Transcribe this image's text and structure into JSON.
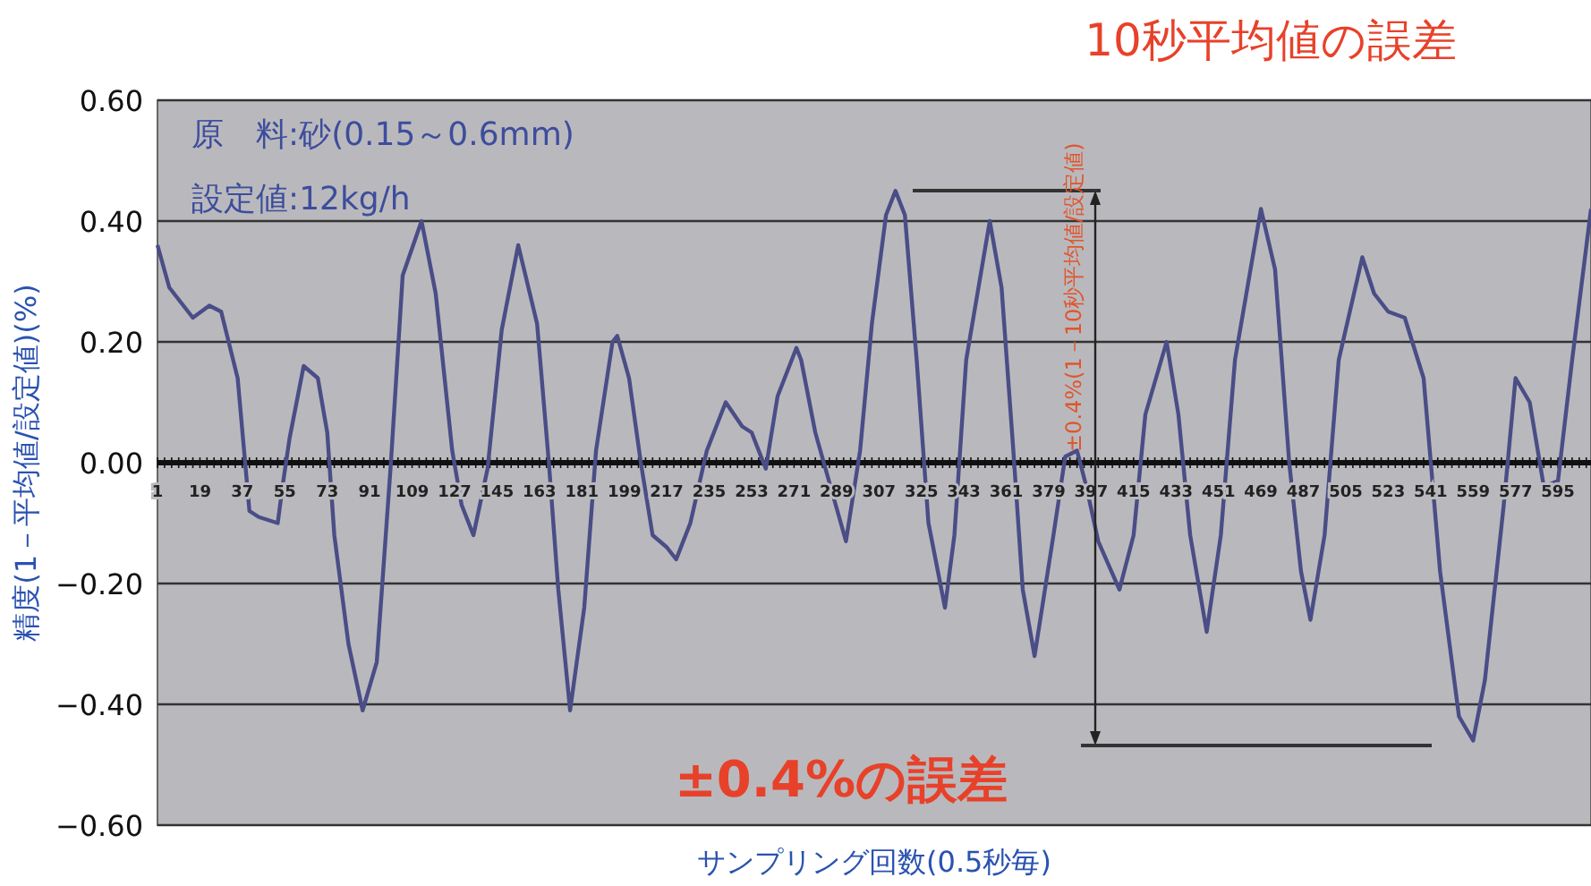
{
  "chart_data": {
    "type": "line",
    "title": "10秒平均値の誤差",
    "xlabel": "サンプリング回数(0.5秒毎)",
    "ylabel": "精度(1－平均値/設定値)(%)",
    "annotations": [
      "原　料:砂(0.15～0.6mm)",
      "設定値:12kg/h",
      "±0.4%の誤差",
      "±0.4%(1－10秒平均値/設定値)"
    ],
    "xlim": [
      1,
      609
    ],
    "xticks": [
      1,
      19,
      37,
      55,
      73,
      91,
      109,
      127,
      145,
      163,
      181,
      199,
      217,
      235,
      253,
      271,
      289,
      307,
      325,
      343,
      361,
      379,
      397,
      415,
      433,
      451,
      469,
      487,
      505,
      523,
      541,
      559,
      577,
      595
    ],
    "ylim": [
      -0.6,
      0.6
    ],
    "yticks": [
      {
        "value": 0.6,
        "label": "0.60"
      },
      {
        "value": 0.4,
        "label": "0.40"
      },
      {
        "value": 0.2,
        "label": "0.20"
      },
      {
        "value": 0,
        "label": "0.00"
      },
      {
        "value": -0.2,
        "label": "−0.20"
      },
      {
        "value": -0.4,
        "label": "−0.40"
      },
      {
        "value": -0.6,
        "label": "−0.60"
      }
    ],
    "grid": "y",
    "marker": "none",
    "line_style": "solid",
    "series": [
      {
        "color": "#4a4d86",
        "x": [
          1,
          6,
          16,
          23,
          28,
          35,
          40,
          44,
          52,
          54,
          57,
          63,
          69,
          73,
          76,
          82,
          88,
          94,
          100,
          105,
          113,
          119,
          126,
          130,
          135,
          141,
          147,
          154,
          162,
          167,
          171,
          176,
          182,
          187,
          194,
          196,
          201,
          206,
          211,
          217,
          221,
          227,
          234,
          242,
          249,
          253,
          259,
          264,
          272,
          274,
          280,
          293,
          299,
          304,
          310,
          314,
          318,
          323,
          328,
          335,
          339,
          344,
          354,
          359,
          364,
          368,
          373,
          381,
          386,
          391,
          395,
          400,
          409,
          415,
          420,
          429,
          434,
          439,
          446,
          452,
          458,
          469,
          475,
          481,
          486,
          490,
          496,
          502,
          512,
          517,
          523,
          530,
          538,
          545,
          553,
          559,
          564,
          572,
          577,
          583,
          589,
          595,
          601,
          609
        ],
        "values": [
          0.36,
          0.29,
          0.24,
          0.26,
          0.25,
          0.14,
          -0.08,
          -0.09,
          -0.1,
          -0.04,
          0.04,
          0.16,
          0.14,
          0.05,
          -0.12,
          -0.3,
          -0.41,
          -0.33,
          0,
          0.31,
          0.4,
          0.28,
          0.02,
          -0.07,
          -0.12,
          -0.01,
          0.22,
          0.36,
          0.23,
          0,
          -0.21,
          -0.41,
          -0.24,
          0.02,
          0.2,
          0.21,
          0.14,
          0,
          -0.12,
          -0.14,
          -0.16,
          -0.1,
          0.02,
          0.1,
          0.06,
          0.05,
          -0.01,
          0.11,
          0.19,
          0.17,
          0.05,
          -0.13,
          0.02,
          0.23,
          0.41,
          0.45,
          0.41,
          0.17,
          -0.1,
          -0.24,
          -0.12,
          0.17,
          0.4,
          0.29,
          0.02,
          -0.21,
          -0.32,
          -0.12,
          0.01,
          0.02,
          -0.04,
          -0.13,
          -0.21,
          -0.12,
          0.08,
          0.2,
          0.08,
          -0.12,
          -0.28,
          -0.12,
          0.17,
          0.42,
          0.32,
          0,
          -0.18,
          -0.26,
          -0.12,
          0.17,
          0.34,
          0.28,
          0.25,
          0.24,
          0.14,
          -0.18,
          -0.42,
          -0.46,
          -0.36,
          -0.07,
          0.14,
          0.1,
          -0.04,
          -0.03,
          0.17,
          0.42
        ]
      }
    ]
  }
}
